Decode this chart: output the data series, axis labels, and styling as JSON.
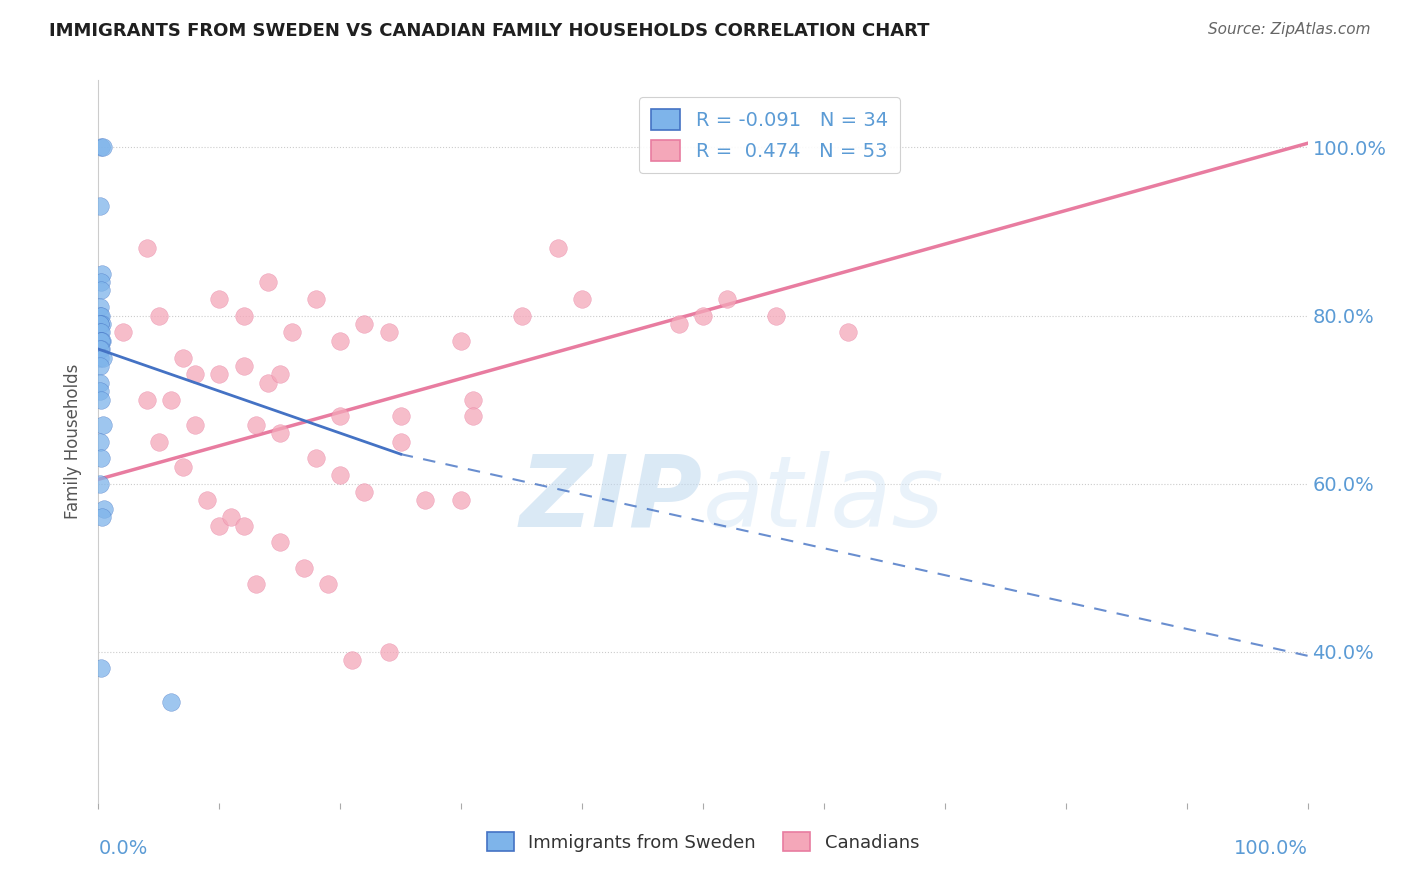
{
  "title": "IMMIGRANTS FROM SWEDEN VS CANADIAN FAMILY HOUSEHOLDS CORRELATION CHART",
  "source": "Source: ZipAtlas.com",
  "ylabel": "Family Households",
  "r_sweden": -0.091,
  "n_sweden": 34,
  "r_canada": 0.474,
  "n_canada": 53,
  "legend_sweden": "Immigrants from Sweden",
  "legend_canada": "Canadians",
  "color_sweden": "#7EB4EA",
  "color_canada": "#F4A7B9",
  "color_sweden_line": "#4472C4",
  "color_canada_line": "#E87CA0",
  "color_axis_labels": "#5B9BD5",
  "background": "#FFFFFF",
  "watermark_zip": "ZIP",
  "watermark_atlas": "atlas",
  "sweden_x": [
    0.002,
    0.004,
    0.001,
    0.003,
    0.002,
    0.002,
    0.001,
    0.001,
    0.002,
    0.003,
    0.001,
    0.001,
    0.001,
    0.002,
    0.002,
    0.001,
    0.003,
    0.002,
    0.002,
    0.001,
    0.001,
    0.004,
    0.001,
    0.001,
    0.001,
    0.002,
    0.004,
    0.001,
    0.002,
    0.001,
    0.005,
    0.003,
    0.002,
    0.06
  ],
  "sweden_y": [
    1.0,
    1.0,
    0.93,
    0.85,
    0.84,
    0.83,
    0.81,
    0.8,
    0.8,
    0.79,
    0.79,
    0.79,
    0.78,
    0.78,
    0.77,
    0.77,
    0.77,
    0.77,
    0.76,
    0.76,
    0.75,
    0.75,
    0.74,
    0.72,
    0.71,
    0.7,
    0.67,
    0.65,
    0.63,
    0.6,
    0.57,
    0.56,
    0.38,
    0.34
  ],
  "canada_x": [
    0.02,
    0.04,
    0.04,
    0.05,
    0.05,
    0.06,
    0.07,
    0.07,
    0.08,
    0.08,
    0.09,
    0.1,
    0.1,
    0.1,
    0.11,
    0.12,
    0.12,
    0.12,
    0.13,
    0.13,
    0.14,
    0.14,
    0.15,
    0.15,
    0.16,
    0.17,
    0.18,
    0.18,
    0.19,
    0.2,
    0.2,
    0.21,
    0.22,
    0.22,
    0.24,
    0.24,
    0.25,
    0.27,
    0.3,
    0.31,
    0.31,
    0.35,
    0.38,
    0.4,
    0.15,
    0.2,
    0.25,
    0.3,
    0.48,
    0.5,
    0.52,
    0.56,
    0.62
  ],
  "canada_y": [
    0.78,
    0.88,
    0.7,
    0.8,
    0.65,
    0.7,
    0.62,
    0.75,
    0.73,
    0.67,
    0.58,
    0.82,
    0.73,
    0.55,
    0.56,
    0.8,
    0.74,
    0.55,
    0.48,
    0.67,
    0.84,
    0.72,
    0.66,
    0.53,
    0.78,
    0.5,
    0.82,
    0.63,
    0.48,
    0.77,
    0.61,
    0.39,
    0.79,
    0.59,
    0.78,
    0.4,
    0.68,
    0.58,
    0.77,
    0.7,
    0.68,
    0.8,
    0.88,
    0.82,
    0.73,
    0.68,
    0.65,
    0.58,
    0.79,
    0.8,
    0.82,
    0.8,
    0.78
  ],
  "xlim": [
    0.0,
    1.0
  ],
  "ylim": [
    0.22,
    1.08
  ],
  "yticks": [
    0.4,
    0.6,
    0.8,
    1.0
  ],
  "ytick_labels": [
    "40.0%",
    "60.0%",
    "80.0%",
    "100.0%"
  ],
  "sw_line_x0": 0.0,
  "sw_line_x_solid_end": 0.25,
  "sw_line_x1": 1.0,
  "sw_line_y_at0": 0.76,
  "sw_line_y_at_solid_end": 0.635,
  "sw_line_y_at1": 0.395,
  "ca_line_x0": 0.0,
  "ca_line_x1": 1.0,
  "ca_line_y0": 0.605,
  "ca_line_y1": 1.005
}
